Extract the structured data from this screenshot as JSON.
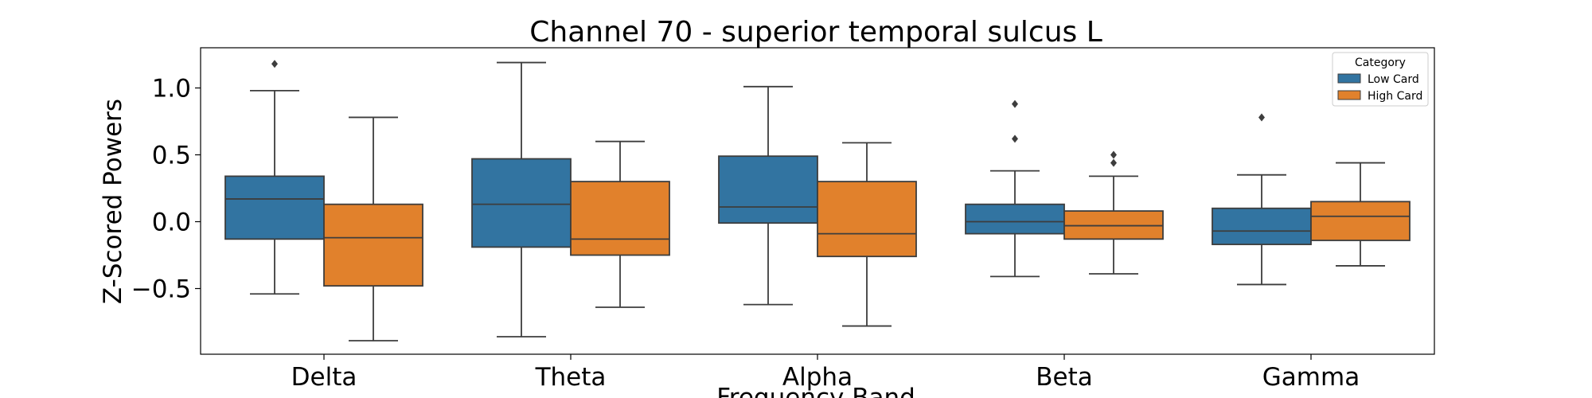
{
  "chart_data": {
    "type": "box",
    "title": "Channel 70 - superior temporal sulcus L",
    "xlabel": "Frequency Band",
    "ylabel": "Z-Scored Powers",
    "ylim": [
      -1.0,
      1.3
    ],
    "yticks": [
      -0.5,
      0.0,
      0.5,
      1.0
    ],
    "ytick_labels": [
      "−0.5",
      "0.0",
      "0.5",
      "1.0"
    ],
    "categories": [
      "Delta",
      "Theta",
      "Alpha",
      "Beta",
      "Gamma"
    ],
    "legend": {
      "title": "Category",
      "position": "top-right"
    },
    "series": [
      {
        "name": "Low Card",
        "color": "#3274a1",
        "boxes": [
          {
            "whislo": -0.54,
            "q1": -0.13,
            "med": 0.17,
            "q3": 0.34,
            "whishi": 0.98,
            "fliers": [
              1.18
            ]
          },
          {
            "whislo": -0.86,
            "q1": -0.19,
            "med": 0.13,
            "q3": 0.47,
            "whishi": 1.19,
            "fliers": []
          },
          {
            "whislo": -0.62,
            "q1": -0.01,
            "med": 0.11,
            "q3": 0.49,
            "whishi": 1.01,
            "fliers": []
          },
          {
            "whislo": -0.41,
            "q1": -0.09,
            "med": 0.0,
            "q3": 0.13,
            "whishi": 0.38,
            "fliers": [
              0.62,
              0.88
            ]
          },
          {
            "whislo": -0.47,
            "q1": -0.17,
            "med": -0.07,
            "q3": 0.1,
            "whishi": 0.35,
            "fliers": [
              0.78
            ]
          }
        ]
      },
      {
        "name": "High Card",
        "color": "#e1812c",
        "boxes": [
          {
            "whislo": -0.89,
            "q1": -0.48,
            "med": -0.12,
            "q3": 0.13,
            "whishi": 0.78,
            "fliers": []
          },
          {
            "whislo": -0.64,
            "q1": -0.25,
            "med": -0.13,
            "q3": 0.3,
            "whishi": 0.6,
            "fliers": []
          },
          {
            "whislo": -0.78,
            "q1": -0.26,
            "med": -0.09,
            "q3": 0.3,
            "whishi": 0.59,
            "fliers": []
          },
          {
            "whislo": -0.39,
            "q1": -0.13,
            "med": -0.03,
            "q3": 0.08,
            "whishi": 0.34,
            "fliers": [
              0.44,
              0.5
            ]
          },
          {
            "whislo": -0.33,
            "q1": -0.14,
            "med": 0.04,
            "q3": 0.15,
            "whishi": 0.44,
            "fliers": []
          }
        ]
      }
    ]
  }
}
